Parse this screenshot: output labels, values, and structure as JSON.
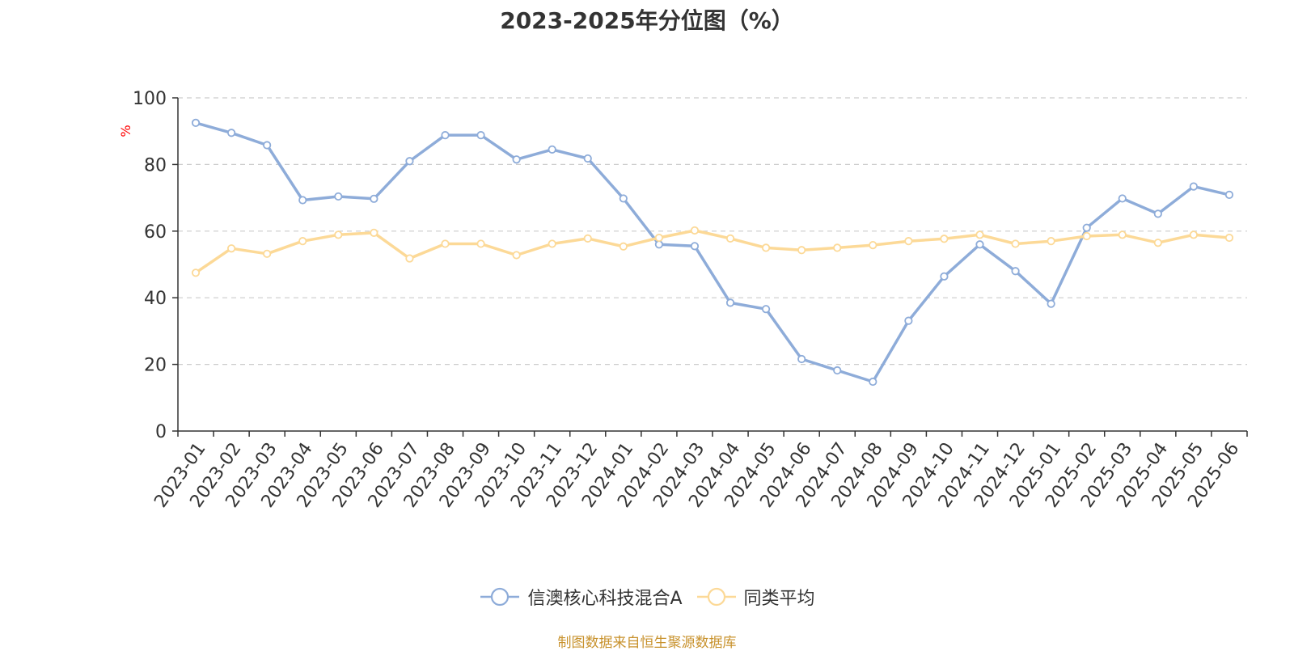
{
  "chart_data": {
    "type": "line",
    "title": "2023-2025年分位图（%）",
    "ylabel": "%",
    "ylim": [
      0,
      100
    ],
    "yticks": [
      0,
      20,
      40,
      60,
      80,
      100
    ],
    "grid": true,
    "legend_position": "bottom",
    "categories": [
      "2023-01",
      "2023-02",
      "2023-03",
      "2023-04",
      "2023-05",
      "2023-06",
      "2023-07",
      "2023-08",
      "2023-09",
      "2023-10",
      "2023-11",
      "2023-12",
      "2024-01",
      "2024-02",
      "2024-03",
      "2024-04",
      "2024-05",
      "2024-06",
      "2024-07",
      "2024-08",
      "2024-09",
      "2024-10",
      "2024-11",
      "2024-12",
      "2025-01",
      "2025-02",
      "2025-03",
      "2025-04",
      "2025-05",
      "2025-06"
    ],
    "series": [
      {
        "name": "信澳核心科技混合A",
        "color": "#8eacd9",
        "values": [
          92.5,
          89.5,
          85.8,
          69.3,
          70.4,
          69.7,
          81.0,
          88.8,
          88.8,
          81.5,
          84.5,
          81.8,
          69.8,
          56.0,
          55.5,
          38.5,
          36.6,
          21.6,
          18.2,
          14.8,
          33.1,
          46.4,
          56.0,
          48.0,
          38.2,
          61.0,
          69.8,
          65.2,
          73.4,
          70.9
        ]
      },
      {
        "name": "同类平均",
        "color": "#fcd997",
        "values": [
          47.5,
          54.8,
          53.2,
          57.0,
          58.9,
          59.5,
          51.8,
          56.2,
          56.2,
          52.8,
          56.2,
          57.8,
          55.4,
          58.0,
          60.2,
          57.8,
          55.0,
          54.3,
          55.0,
          55.8,
          57.0,
          57.7,
          58.9,
          56.2,
          57.0,
          58.5,
          58.9,
          56.5,
          58.9,
          58.0
        ]
      }
    ]
  },
  "footer": {
    "source_text": "制图数据来自恒生聚源数据库",
    "source_color": "#c8922d"
  },
  "colors": {
    "axis": "#333333",
    "grid": "#cccccc",
    "ylabel": "#ff0000"
  }
}
